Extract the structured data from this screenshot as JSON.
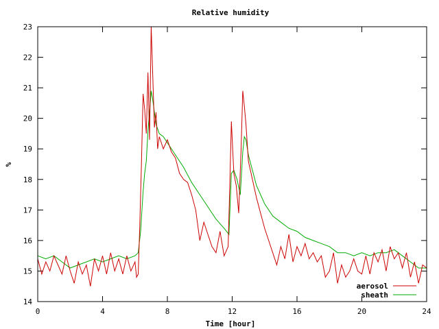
{
  "chart_data": {
    "type": "line",
    "title": "Relative humidity",
    "xlabel": "Time [hour]",
    "ylabel": "%",
    "xlim": [
      0,
      24
    ],
    "ylim": [
      14,
      23
    ],
    "xticks": [
      0,
      4,
      8,
      12,
      16,
      20,
      24
    ],
    "yticks": [
      14,
      15,
      16,
      17,
      18,
      19,
      20,
      21,
      22,
      23
    ],
    "grid": false,
    "legend_position": "bottom-right",
    "series": [
      {
        "name": "aerosol",
        "color": "#cc0000",
        "x": [
          0.0,
          0.25,
          0.5,
          0.75,
          1.0,
          1.25,
          1.5,
          1.75,
          2.0,
          2.25,
          2.5,
          2.75,
          3.0,
          3.25,
          3.5,
          3.75,
          4.0,
          4.25,
          4.5,
          4.75,
          5.0,
          5.25,
          5.5,
          5.75,
          6.0,
          6.1,
          6.2,
          6.3,
          6.4,
          6.5,
          6.6,
          6.7,
          6.8,
          6.9,
          7.0,
          7.1,
          7.2,
          7.3,
          7.4,
          7.5,
          7.75,
          8.0,
          8.25,
          8.5,
          8.75,
          9.0,
          9.25,
          9.5,
          9.75,
          10.0,
          10.25,
          10.5,
          10.75,
          11.0,
          11.25,
          11.5,
          11.75,
          11.85,
          11.95,
          12.1,
          12.25,
          12.4,
          12.55,
          12.65,
          12.75,
          12.85,
          13.0,
          13.25,
          13.5,
          13.75,
          14.0,
          14.25,
          14.5,
          14.75,
          15.0,
          15.25,
          15.5,
          15.75,
          16.0,
          16.25,
          16.5,
          16.75,
          17.0,
          17.25,
          17.5,
          17.75,
          18.0,
          18.25,
          18.5,
          18.75,
          19.0,
          19.25,
          19.5,
          19.75,
          20.0,
          20.25,
          20.5,
          20.75,
          21.0,
          21.25,
          21.5,
          21.75,
          22.0,
          22.25,
          22.5,
          22.75,
          23.0,
          23.25,
          23.5,
          23.75,
          24.0
        ],
        "values": [
          15.4,
          14.9,
          15.3,
          15.0,
          15.5,
          15.2,
          14.9,
          15.5,
          15.0,
          14.6,
          15.3,
          14.9,
          15.2,
          14.5,
          15.4,
          15.0,
          15.5,
          14.9,
          15.6,
          15.0,
          15.4,
          14.9,
          15.5,
          15.0,
          15.3,
          14.8,
          14.9,
          16.5,
          18.5,
          20.8,
          20.3,
          19.5,
          21.5,
          19.3,
          23.0,
          21.4,
          19.7,
          20.2,
          19.0,
          19.4,
          19.0,
          19.3,
          18.9,
          18.7,
          18.2,
          18.0,
          17.9,
          17.5,
          17.0,
          16.0,
          16.6,
          16.2,
          15.8,
          15.6,
          16.3,
          15.5,
          15.8,
          17.8,
          19.9,
          18.2,
          17.8,
          16.9,
          19.0,
          20.9,
          20.4,
          19.8,
          18.6,
          18.0,
          17.4,
          16.9,
          16.4,
          16.0,
          15.6,
          15.2,
          15.8,
          15.4,
          16.2,
          15.3,
          15.8,
          15.5,
          15.9,
          15.4,
          15.6,
          15.3,
          15.5,
          14.8,
          15.0,
          15.6,
          14.6,
          15.2,
          14.8,
          15.0,
          15.4,
          15.0,
          14.9,
          15.5,
          14.9,
          15.6,
          15.3,
          15.7,
          15.0,
          15.8,
          15.4,
          15.6,
          15.1,
          15.6,
          14.8,
          15.3,
          14.6,
          15.2,
          15.1
        ]
      },
      {
        "name": "sheath",
        "color": "#00aa00",
        "x": [
          0.0,
          0.5,
          1.0,
          1.5,
          2.0,
          2.5,
          3.0,
          3.5,
          4.0,
          4.5,
          5.0,
          5.5,
          6.0,
          6.2,
          6.35,
          6.5,
          6.6,
          6.7,
          6.8,
          6.9,
          7.0,
          7.1,
          7.2,
          7.3,
          7.5,
          7.75,
          8.0,
          8.5,
          9.0,
          9.5,
          10.0,
          10.5,
          11.0,
          11.5,
          11.8,
          11.95,
          12.1,
          12.3,
          12.5,
          12.65,
          12.75,
          12.85,
          13.0,
          13.25,
          13.5,
          14.0,
          14.5,
          15.0,
          15.5,
          16.0,
          16.5,
          17.0,
          17.5,
          18.0,
          18.5,
          19.0,
          19.5,
          20.0,
          20.5,
          21.0,
          21.5,
          22.0,
          22.5,
          23.0,
          23.5,
          24.0
        ],
        "values": [
          15.5,
          15.4,
          15.5,
          15.3,
          15.1,
          15.2,
          15.3,
          15.4,
          15.3,
          15.4,
          15.5,
          15.4,
          15.5,
          15.6,
          16.3,
          17.6,
          18.2,
          18.6,
          19.6,
          20.2,
          20.9,
          20.6,
          20.2,
          19.8,
          19.5,
          19.4,
          19.2,
          18.8,
          18.4,
          17.9,
          17.5,
          17.1,
          16.7,
          16.4,
          16.2,
          18.2,
          18.3,
          18.0,
          17.5,
          18.9,
          19.4,
          19.3,
          18.8,
          18.3,
          17.8,
          17.2,
          16.8,
          16.6,
          16.4,
          16.3,
          16.1,
          16.0,
          15.9,
          15.8,
          15.6,
          15.6,
          15.5,
          15.6,
          15.5,
          15.6,
          15.6,
          15.7,
          15.5,
          15.3,
          15.1,
          15.1
        ]
      }
    ]
  }
}
